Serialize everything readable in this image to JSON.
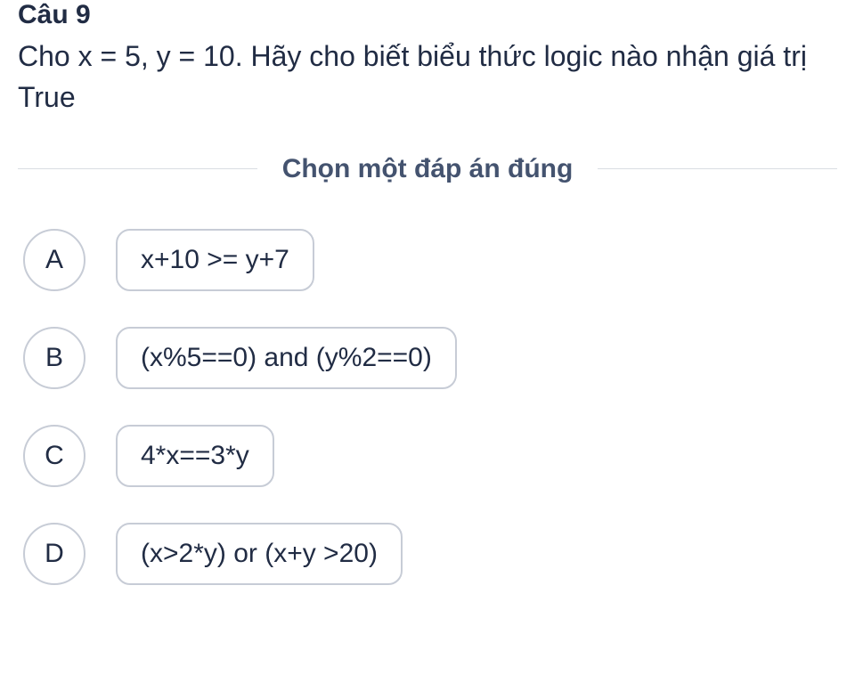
{
  "question_number": "Câu 9",
  "question_text": "Cho x = 5, y = 10. Hãy cho biết biểu thức logic nào nhận giá trị True",
  "instruction": "Chọn một đáp án đúng",
  "options": [
    {
      "letter": "A",
      "text": "x+10 >= y+7"
    },
    {
      "letter": "B",
      "text": "(x%5==0) and (y%2==0)"
    },
    {
      "letter": "C",
      "text": "4*x==3*y"
    },
    {
      "letter": "D",
      "text": "(x>2*y) or (x+y >20)"
    }
  ],
  "colors": {
    "text": "#212c44",
    "muted": "#44536f",
    "border": "#c7ccd6",
    "divider": "#d9dde3",
    "background": "#ffffff"
  }
}
